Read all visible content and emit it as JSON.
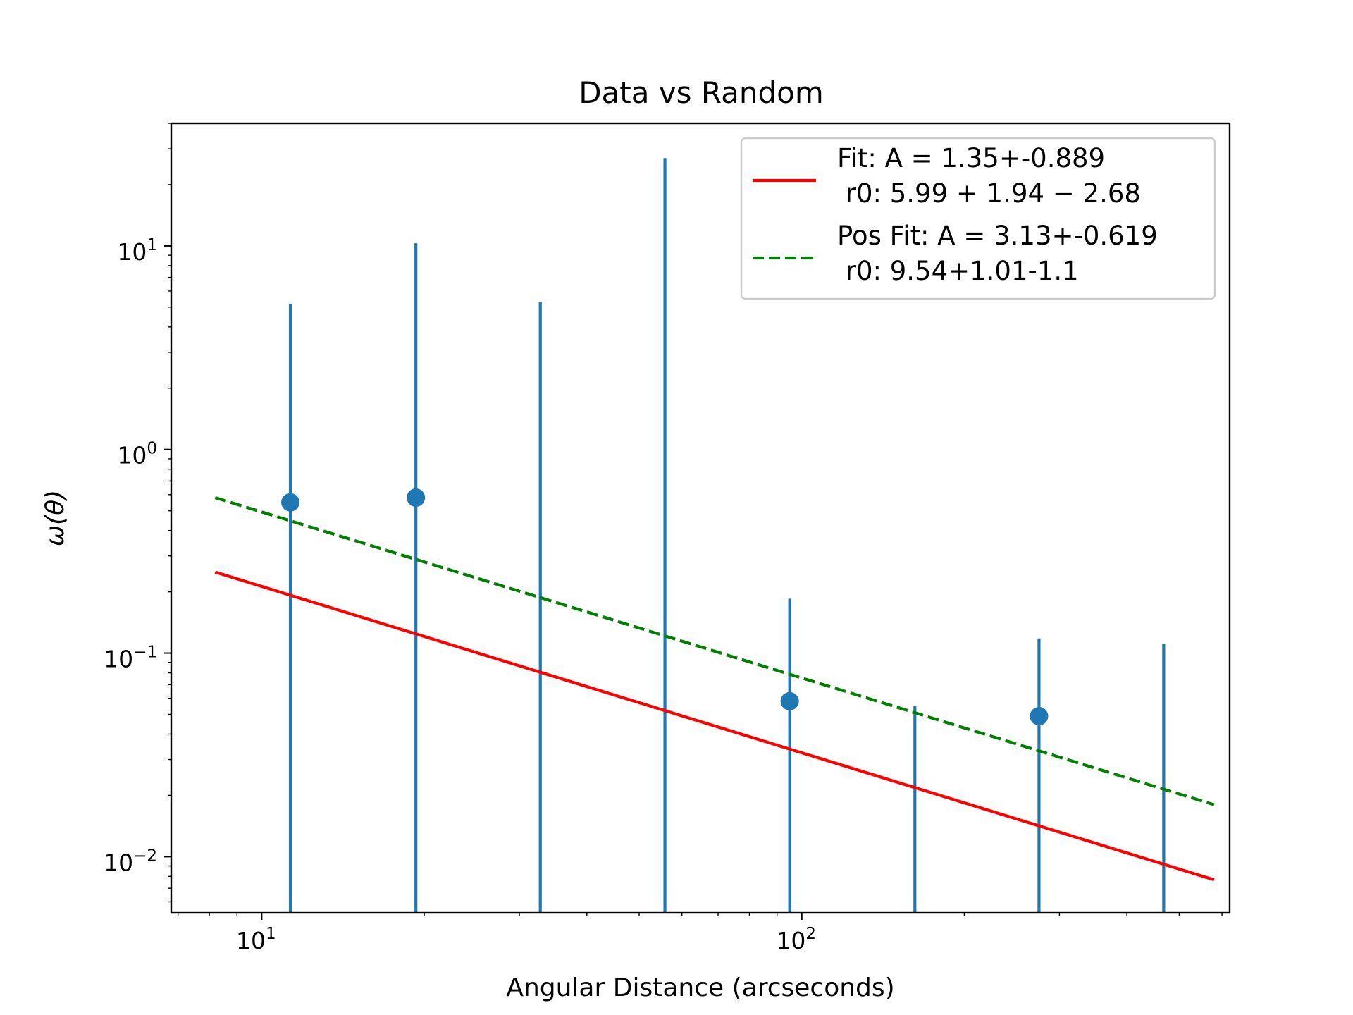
{
  "chart_data": {
    "type": "scatter",
    "title": "Data vs Random",
    "xlabel": "Angular Distance (arcseconds)",
    "ylabel": "ω(θ)",
    "xscale": "log",
    "yscale": "log",
    "xlim": [
      6.8,
      620
    ],
    "ylim": [
      0.0053,
      40
    ],
    "x_ticks": [
      {
        "base": "10",
        "exp": "1",
        "value": 10
      },
      {
        "base": "10",
        "exp": "2",
        "value": 100
      }
    ],
    "y_ticks": [
      {
        "base": "10",
        "exp": "1",
        "value": 10
      },
      {
        "base": "10",
        "exp": "0",
        "value": 1
      },
      {
        "base": "10",
        "exp": "−1",
        "value": 0.1
      },
      {
        "base": "10",
        "exp": "−2",
        "value": 0.01
      }
    ],
    "grid": false,
    "legend_position": "top-right",
    "colors": {
      "data": "#1f77b4",
      "fit": "#ff0000",
      "pos_fit": "#008000",
      "frame": "#000000"
    },
    "data_series": {
      "x": [
        11.3,
        19.3,
        32.8,
        55.8,
        95,
        162,
        275,
        468
      ],
      "y": [
        0.55,
        0.58,
        null,
        null,
        0.058,
        null,
        0.049,
        null
      ],
      "yerr_upper": [
        5.2,
        10.3,
        5.3,
        27,
        0.185,
        0.055,
        0.118,
        0.111
      ]
    },
    "fit_lines": [
      {
        "name": "Fit: A = 1.35+-0.889\n r0: 5.99 + 1.94 − 2.68",
        "style": "solid",
        "x": [
          8.2,
          580
        ],
        "y": [
          0.25,
          0.0077
        ]
      },
      {
        "name": "Pos Fit: A = 3.13+-0.619\n r0: 9.54+1.01-1.1",
        "style": "dashed",
        "x": [
          8.2,
          580
        ],
        "y": [
          0.58,
          0.018
        ]
      }
    ],
    "legend": [
      {
        "line1": "Fit: A = 1.35+-0.889",
        "line2": " r0: 5.99 + 1.94 − 2.68"
      },
      {
        "line1": "Pos Fit: A = 3.13+-0.619",
        "line2": " r0: 9.54+1.01-1.1"
      }
    ]
  }
}
